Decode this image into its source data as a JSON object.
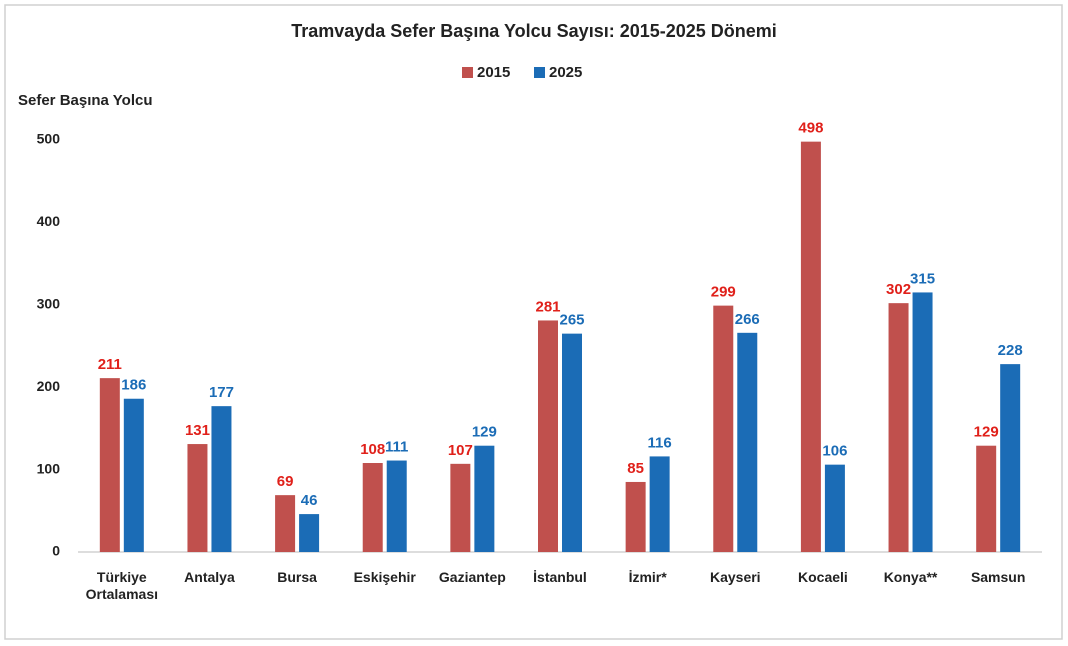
{
  "chart_data": {
    "type": "bar",
    "title": "Tramvayda Sefer Başına Yolcu Sayısı: 2015-2025 Dönemi",
    "y_label": "Sefer Başına Yolcu",
    "categories": [
      "Türkiye Ortalaması",
      "Antalya",
      "Bursa",
      "Eskişehir",
      "Gaziantep",
      "İstanbul",
      "İzmir*",
      "Kayseri",
      "Kocaeli",
      "Konya**",
      "Samsun"
    ],
    "series": [
      {
        "name": "2015",
        "color": "#c0504d",
        "label_color": "#e0201a",
        "values": [
          211,
          131,
          69,
          108,
          107,
          281,
          85,
          299,
          498,
          302,
          129
        ]
      },
      {
        "name": "2025",
        "color": "#1b6cb6",
        "label_color": "#1b6cb6",
        "values": [
          186,
          177,
          46,
          111,
          129,
          265,
          116,
          266,
          106,
          315,
          228
        ]
      }
    ],
    "ylim": [
      0,
      500
    ],
    "yticks": [
      0,
      100,
      200,
      300,
      400,
      500
    ],
    "grid": false,
    "legend": "top"
  }
}
